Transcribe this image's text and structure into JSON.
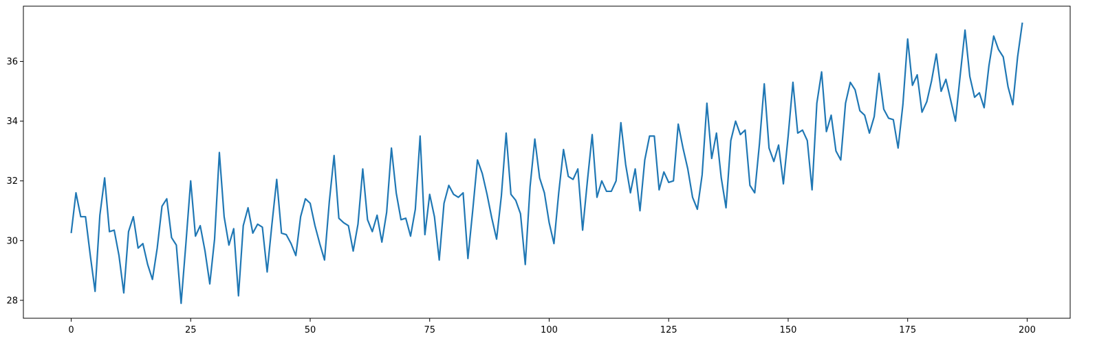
{
  "chart_data": {
    "type": "line",
    "title": "",
    "xlabel": "",
    "ylabel": "",
    "xlim": [
      -10,
      209
    ],
    "ylim": [
      27.4,
      37.85
    ],
    "grid": false,
    "line_color": "#1f77b4",
    "x_ticks": [
      0,
      25,
      50,
      75,
      100,
      125,
      150,
      175,
      200
    ],
    "x_tick_labels": [
      "0",
      "25",
      "50",
      "75",
      "100",
      "125",
      "150",
      "175",
      "200"
    ],
    "y_ticks": [
      28,
      30,
      32,
      34,
      36
    ],
    "y_tick_labels": [
      "28",
      "30",
      "32",
      "34",
      "36"
    ],
    "series": [
      {
        "values": [
          30.25,
          31.6,
          30.8,
          30.8,
          29.5,
          28.3,
          30.85,
          32.1,
          30.3,
          30.35,
          29.5,
          28.25,
          30.3,
          30.8,
          29.75,
          29.9,
          29.2,
          28.7,
          29.75,
          31.15,
          31.4,
          30.1,
          29.85,
          27.9,
          29.9,
          32.0,
          30.15,
          30.5,
          29.65,
          28.55,
          30.05,
          32.95,
          30.8,
          29.85,
          30.4,
          28.15,
          30.5,
          31.1,
          30.25,
          30.55,
          30.45,
          28.95,
          30.55,
          32.05,
          30.25,
          30.2,
          29.9,
          29.5,
          30.8,
          31.4,
          31.25,
          30.5,
          29.9,
          29.35,
          31.3,
          32.85,
          30.75,
          30.6,
          30.5,
          29.65,
          30.55,
          32.4,
          30.7,
          30.3,
          30.85,
          29.95,
          30.95,
          33.1,
          31.6,
          30.7,
          30.75,
          30.15,
          31.05,
          33.5,
          30.2,
          31.55,
          30.8,
          29.35,
          31.25,
          31.85,
          31.55,
          31.45,
          31.6,
          29.4,
          31.0,
          32.7,
          32.25,
          31.55,
          30.75,
          30.05,
          31.5,
          33.6,
          31.55,
          31.35,
          30.9,
          29.2,
          31.8,
          33.4,
          32.1,
          31.6,
          30.6,
          29.9,
          31.6,
          33.05,
          32.15,
          32.05,
          32.4,
          30.35,
          32.0,
          33.55,
          31.45,
          32.0,
          31.65,
          31.65,
          32.0,
          33.95,
          32.55,
          31.6,
          32.4,
          31.0,
          32.7,
          33.5,
          33.5,
          31.7,
          32.3,
          31.95,
          32.0,
          33.9,
          33.1,
          32.4,
          31.45,
          31.05,
          32.2,
          34.6,
          32.75,
          33.6,
          32.1,
          31.1,
          33.35,
          34.0,
          33.55,
          33.7,
          31.85,
          31.6,
          33.25,
          35.25,
          33.1,
          32.65,
          33.2,
          31.9,
          33.5,
          35.3,
          33.6,
          33.7,
          33.35,
          31.7,
          34.6,
          35.65,
          33.65,
          34.2,
          33.0,
          32.7,
          34.6,
          35.3,
          35.05,
          34.35,
          34.2,
          33.6,
          34.15,
          35.6,
          34.4,
          34.1,
          34.05,
          33.1,
          34.55,
          36.75,
          35.2,
          35.55,
          34.3,
          34.65,
          35.35,
          36.25,
          35.0,
          35.4,
          34.7,
          34.0,
          35.55,
          37.05,
          35.5,
          34.8,
          34.95,
          34.45,
          35.85,
          36.85,
          36.4,
          36.15,
          35.15,
          34.55,
          36.15,
          37.3
        ]
      }
    ]
  }
}
